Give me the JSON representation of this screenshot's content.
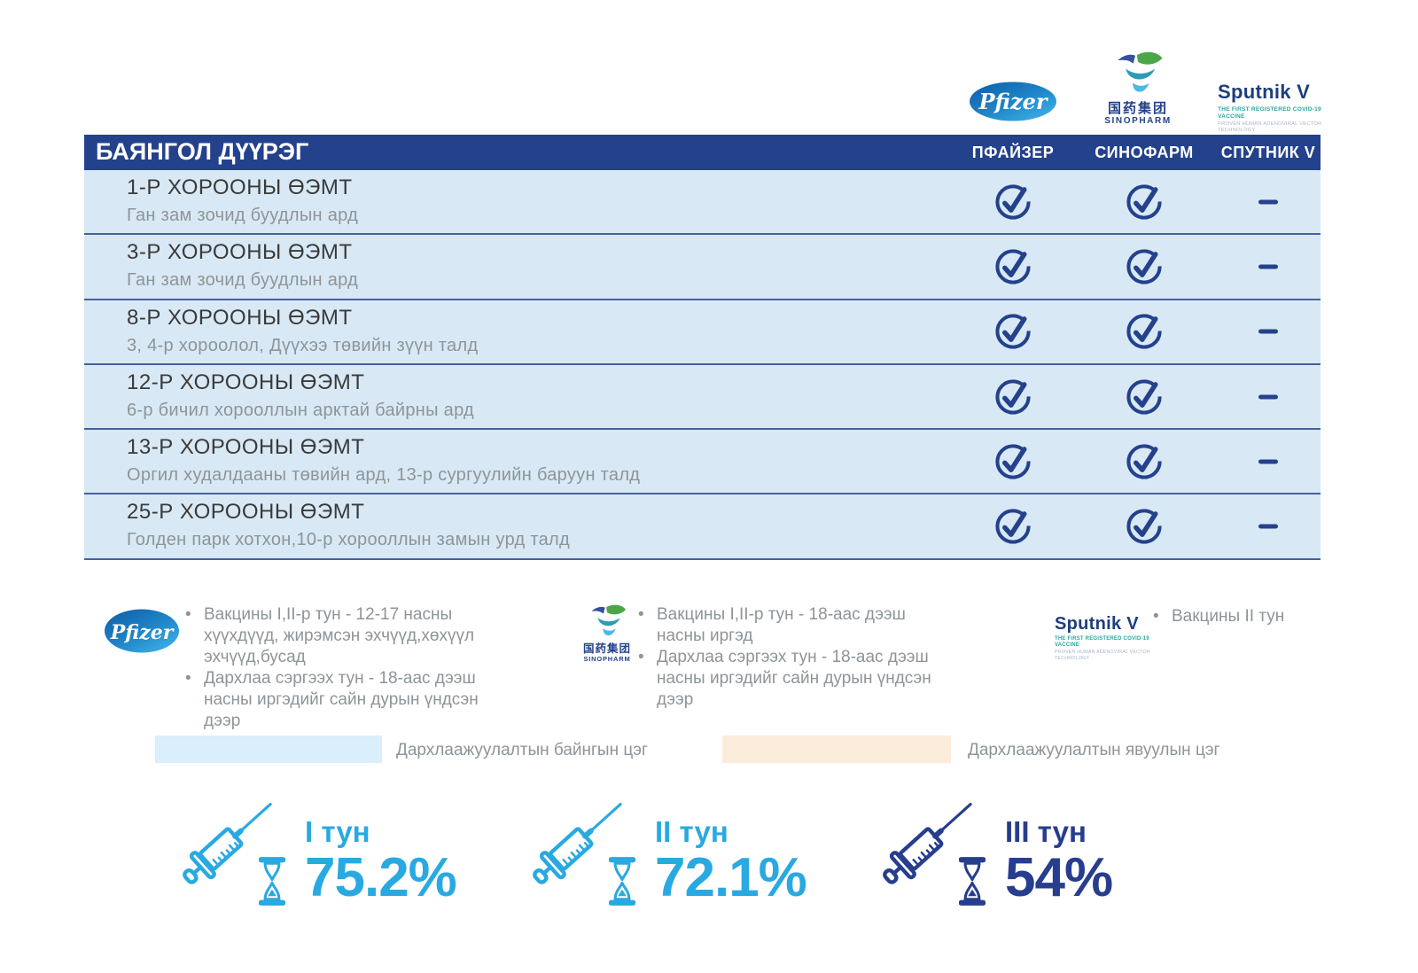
{
  "logos": {
    "pfizer": "Pfizer",
    "sinopharm_cn": "国药集团",
    "sinopharm_en": "SINOPHARM",
    "sputnik_name": "Sputnik V",
    "sputnik_tagline1": "THE FIRST REGISTERED COVID-19 VACCINE",
    "sputnik_tagline2": "PROVEN HUMAN ADENOVIRAL VECTOR TECHNOLOGY"
  },
  "table": {
    "title": "БАЯНГОЛ ДҮҮРЭГ",
    "columns": [
      "ПФАЙЗЕР",
      "СИНОФАРМ",
      "СПУТНИК V"
    ],
    "rows": [
      {
        "name": "1-Р ХОРООНЫ ӨЭМТ",
        "location": "Ган зам зочид буудлын ард",
        "marks": [
          true,
          true,
          false
        ]
      },
      {
        "name": "3-Р ХОРООНЫ ӨЭМТ",
        "location": "Ган зам зочид буудлын ард",
        "marks": [
          true,
          true,
          false
        ]
      },
      {
        "name": "8-Р ХОРООНЫ ӨЭМТ",
        "location": "3, 4-р хороолол, Дүүхээ төвийн зүүн талд",
        "marks": [
          true,
          true,
          false
        ]
      },
      {
        "name": "12-Р ХОРООНЫ ӨЭМТ",
        "location": "6-р бичил хорооллын арктай байрны ард",
        "marks": [
          true,
          true,
          false
        ]
      },
      {
        "name": "13-Р ХОРООНЫ ӨЭМТ",
        "location": "Оргил худалдааны төвийн ард, 13-р сургуулийн баруун талд",
        "marks": [
          true,
          true,
          false
        ]
      },
      {
        "name": "25-Р ХОРООНЫ ӨЭМТ",
        "location": "Голден парк хотхон,10-р хорооллын замын урд талд",
        "marks": [
          true,
          true,
          false
        ]
      }
    ]
  },
  "notes": {
    "pfizer": [
      "Вакцины I,II-р тун - 12-17 насны хүүхдүүд, жирэмсэн эхчүүд,хөхүүл эхчүүд,бусад",
      "Дархлаа сэргээх тун - 18-аас дээш насны иргэдийг сайн дурын үндсэн дээр"
    ],
    "sinopharm": [
      "Вакцины I,II-р тун - 18-аас дээш насны иргэд",
      "Дархлаа сэргээх тун - 18-аас дээш насны иргэдийг сайн дурын үндсэн дээр"
    ],
    "sputnik": [
      "Вакцины II тун"
    ]
  },
  "legend": [
    {
      "label": "Дархлаажуулалтын байнгын цэг",
      "color": "#daeefb"
    },
    {
      "label": "Дархлаажуулалтын явуулын цэг",
      "color": "#fcecdc"
    }
  ],
  "stats": [
    {
      "dose": "I тун",
      "value": "75.2%",
      "color": "#29a9e1"
    },
    {
      "dose": "II тун",
      "value": "72.1%",
      "color": "#29a9e1"
    },
    {
      "dose": "III тун",
      "value": "54%",
      "color": "#273e8e"
    }
  ],
  "colors": {
    "header_bar": "#24418c",
    "row_background": "#d8e9f5",
    "row_separator": "#44619e",
    "check": "#24418c",
    "note_text": "#8e9498",
    "accent_blue": "#29a9e1",
    "accent_navy": "#273e8e"
  }
}
